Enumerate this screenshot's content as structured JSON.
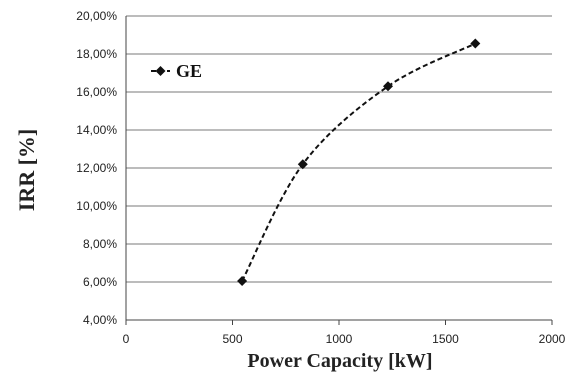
{
  "chart_data": {
    "type": "line",
    "xlabel": "Power Capacity [kW]",
    "ylabel": "IRR [%]",
    "xlim": [
      0,
      2000
    ],
    "ylim": [
      4,
      20
    ],
    "x_ticks": [
      0,
      500,
      1000,
      1500,
      2000
    ],
    "x_tick_labels": [
      "0",
      "500",
      "1000",
      "1500",
      "2000"
    ],
    "y_ticks": [
      4,
      6,
      8,
      10,
      12,
      14,
      16,
      18,
      20
    ],
    "y_tick_labels": [
      "4,00%",
      "6,00%",
      "8,00%",
      "10,00%",
      "12,00%",
      "14,00%",
      "16,00%",
      "18,00%",
      "20,00%"
    ],
    "grid": "horizontal",
    "legend_position": "top-left",
    "line_style": "dashed",
    "marker": "diamond",
    "series_color": "#111111",
    "series": [
      {
        "name": "GE",
        "x": [
          545,
          830,
          1230,
          1640
        ],
        "y": [
          6.05,
          12.2,
          16.3,
          18.55
        ]
      }
    ]
  }
}
